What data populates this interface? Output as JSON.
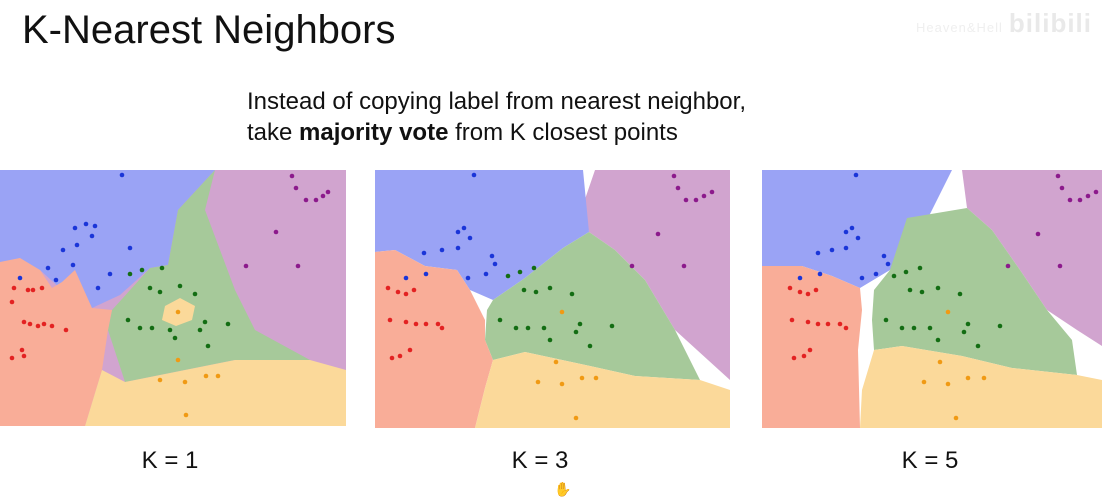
{
  "slide": {
    "title": "K-Nearest Neighbors",
    "subtitle_line1": "Instead of copying label from nearest neighbor,",
    "subtitle_line2_pre": "take ",
    "subtitle_line2_bold": "majority vote",
    "subtitle_line2_post": " from K closest points",
    "watermark": "bilibili",
    "watermark_faint": "Heaven&Hell"
  },
  "colors": {
    "blue_region": "#9aa3f5",
    "red_region": "#f9ad98",
    "green_region": "#a6c99a",
    "yellow_region": "#fbd99a",
    "purple_region": "#d1a4cf",
    "blue_point": "#1a35d8",
    "red_point": "#e32222",
    "green_point": "#136d13",
    "yellow_point": "#f09a14",
    "purple_point": "#8c1a8c"
  },
  "panels": [
    {
      "label": "K = 1",
      "k": 1
    },
    {
      "label": "K = 3",
      "k": 3
    },
    {
      "label": "K = 5",
      "k": 5
    }
  ],
  "cursor_icon": "hand-cursor-icon"
}
